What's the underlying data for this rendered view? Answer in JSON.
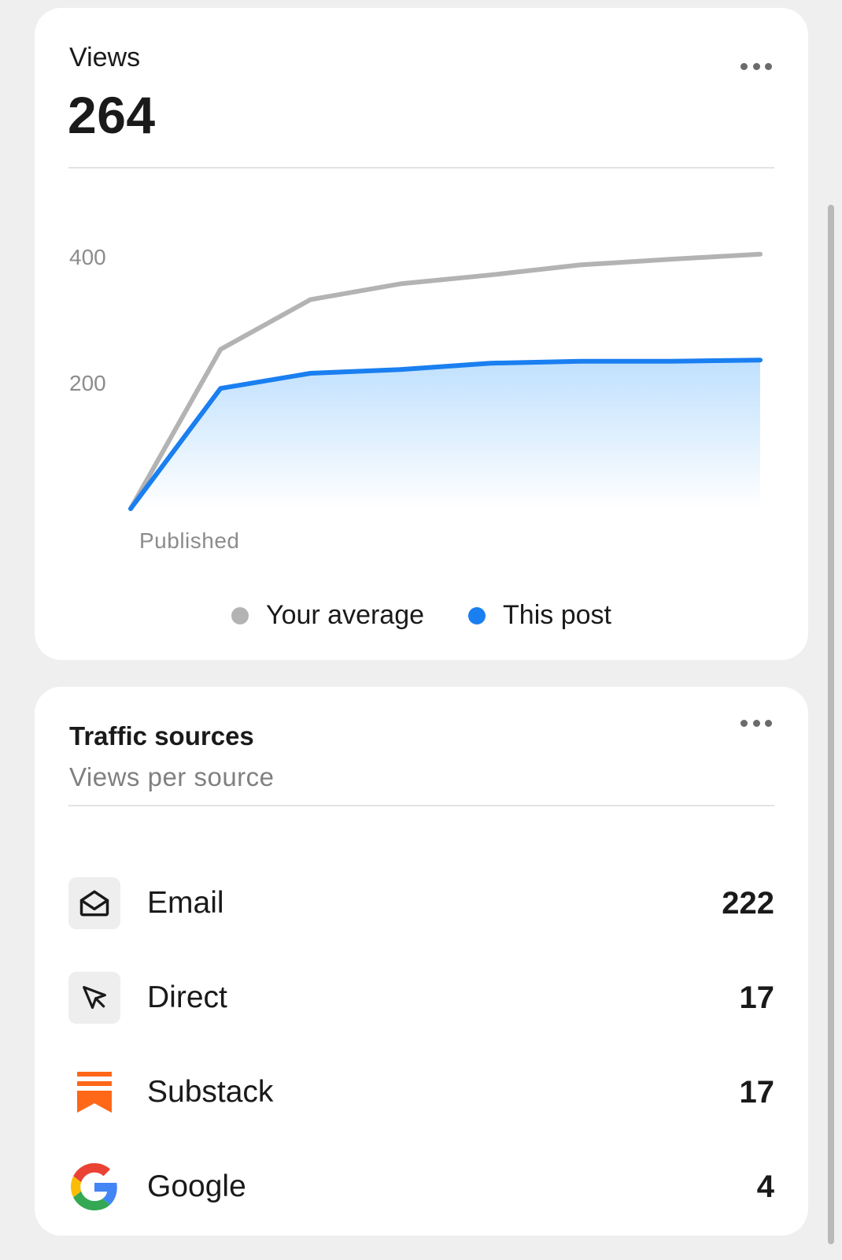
{
  "views_card": {
    "label": "Views",
    "total": "264",
    "more_icon": "more-horizontal-icon"
  },
  "chart_data": {
    "type": "area",
    "x_label": "Published",
    "y_ticks": [
      200,
      400
    ],
    "ylim": [
      0,
      500
    ],
    "grid": false,
    "legend_position": "bottom-center",
    "series": [
      {
        "name": "Your average",
        "color": "#b3b3b3",
        "values": [
          0,
          253,
          332,
          357,
          371,
          387,
          396,
          404
        ]
      },
      {
        "name": "This post",
        "color": "#1a7ff0",
        "fill": true,
        "values": [
          0,
          191,
          215,
          221,
          231,
          234,
          234,
          236
        ]
      }
    ]
  },
  "traffic_card": {
    "title": "Traffic sources",
    "subtitle": "Views per source",
    "more_icon": "more-horizontal-icon",
    "sources": [
      {
        "name": "Email",
        "count": "222",
        "icon": "envelope-open-icon"
      },
      {
        "name": "Direct",
        "count": "17",
        "icon": "cursor-arrow-icon"
      },
      {
        "name": "Substack",
        "count": "17",
        "icon": "substack-logo-icon",
        "color": "#ff6719"
      },
      {
        "name": "Google",
        "count": "4",
        "icon": "google-logo-icon"
      }
    ]
  }
}
